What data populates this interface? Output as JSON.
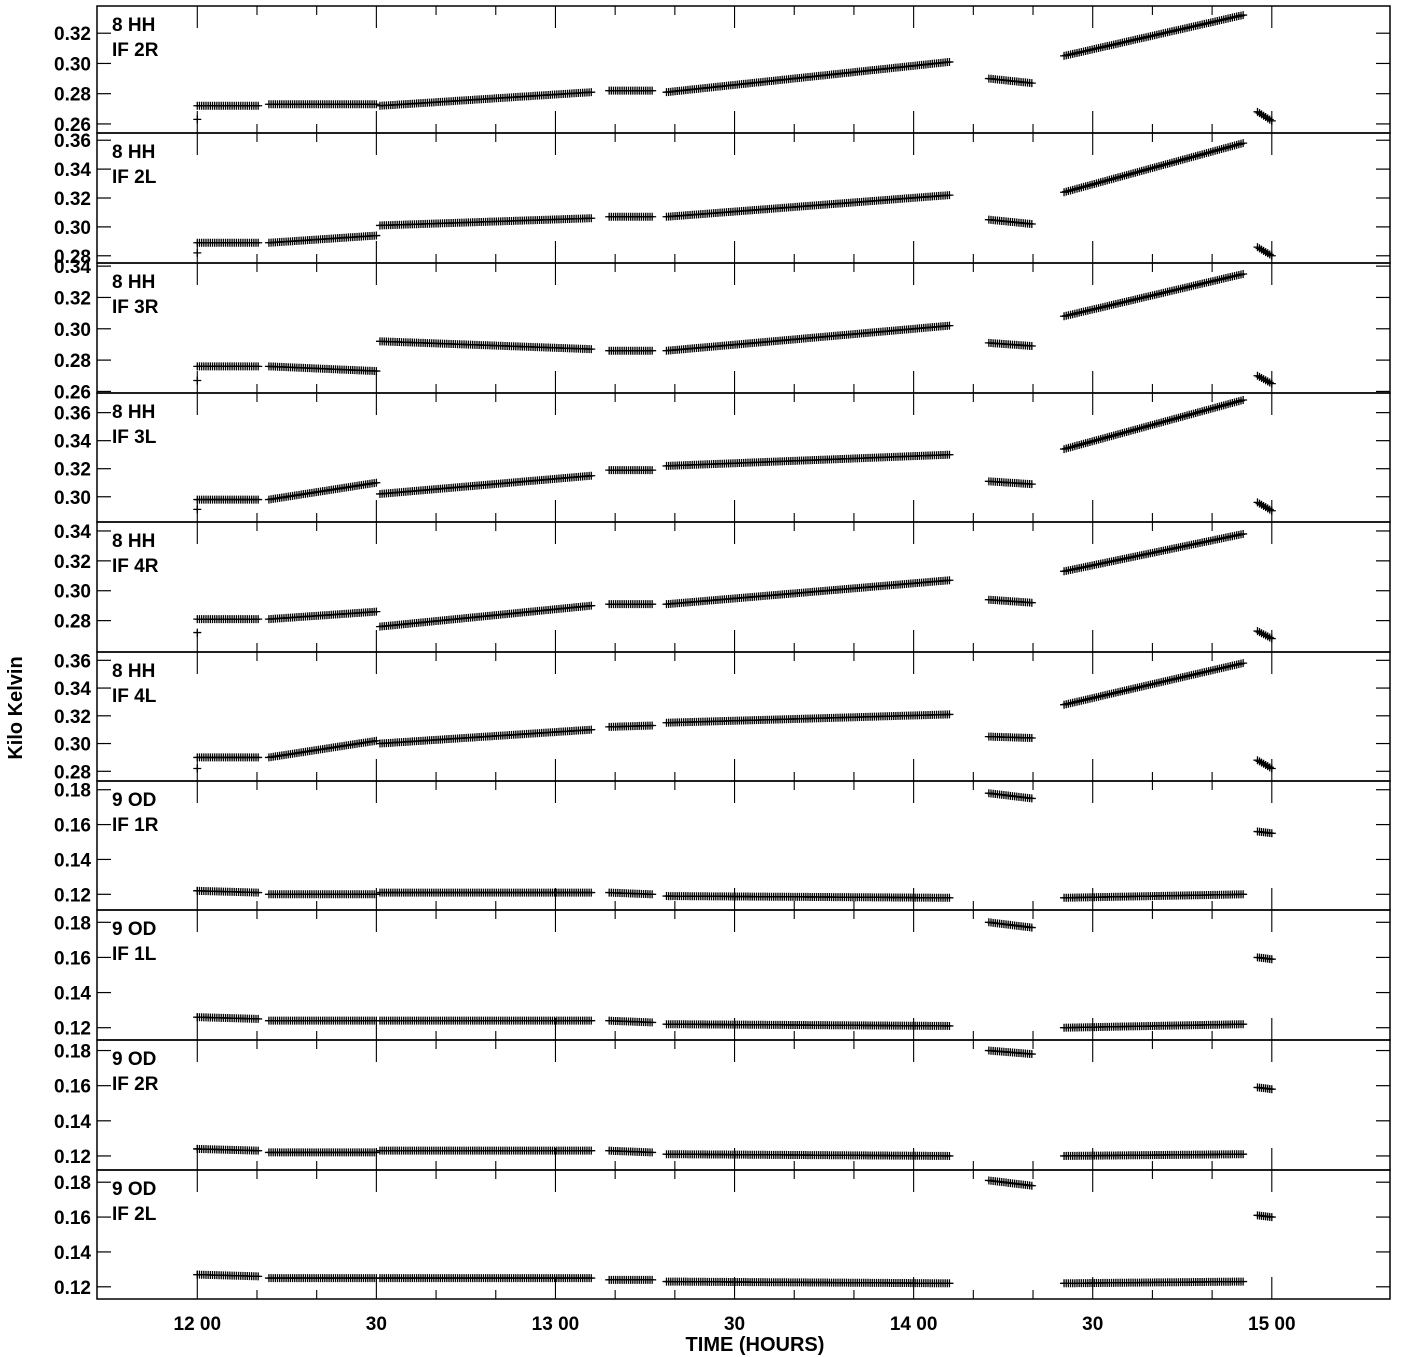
{
  "chart_data": {
    "type": "scatter",
    "marker": "+",
    "ylabel": "Kilo Kelvin",
    "xlabel": "TIME (HOURS)",
    "x_unit": "hours",
    "xlim": [
      11.72,
      15.33
    ],
    "x_ticks": [
      {
        "value": 12.0,
        "label": "12 00"
      },
      {
        "value": 12.5,
        "label": "30"
      },
      {
        "value": 13.0,
        "label": "13 00"
      },
      {
        "value": 13.5,
        "label": "30"
      },
      {
        "value": 14.0,
        "label": "14 00"
      },
      {
        "value": 14.5,
        "label": "30"
      },
      {
        "value": 15.0,
        "label": "15 00"
      }
    ],
    "time_segments": [
      [
        12.0,
        12.17
      ],
      [
        12.2,
        12.5
      ],
      [
        12.51,
        13.1
      ],
      [
        13.15,
        13.27
      ],
      [
        13.31,
        14.1
      ],
      [
        14.21,
        14.33
      ],
      [
        14.42,
        14.92
      ],
      [
        14.96,
        15.0
      ]
    ],
    "panels": [
      {
        "label_line1": "8 HH",
        "label_line2": "IF 2R",
        "ylim": [
          0.254,
          0.338
        ],
        "yticks": [
          0.26,
          0.28,
          0.3,
          0.32
        ],
        "first_point": 0.263,
        "segments": [
          [
            0.272,
            0.272
          ],
          [
            0.273,
            0.273
          ],
          [
            0.272,
            0.281
          ],
          [
            0.282,
            0.282
          ],
          [
            0.281,
            0.301
          ],
          [
            0.29,
            0.287
          ],
          [
            0.305,
            0.332
          ],
          [
            0.268,
            0.262
          ]
        ]
      },
      {
        "label_line1": "8 HH",
        "label_line2": "IF 2L",
        "ylim": [
          0.275,
          0.365
        ],
        "yticks": [
          0.28,
          0.3,
          0.32,
          0.34,
          0.36
        ],
        "first_point": 0.282,
        "segments": [
          [
            0.289,
            0.289
          ],
          [
            0.289,
            0.294
          ],
          [
            0.301,
            0.306
          ],
          [
            0.307,
            0.307
          ],
          [
            0.307,
            0.322
          ],
          [
            0.305,
            0.302
          ],
          [
            0.324,
            0.358
          ],
          [
            0.286,
            0.28
          ]
        ]
      },
      {
        "label_line1": "8 HH",
        "label_line2": "IF 3R",
        "ylim": [
          0.259,
          0.342
        ],
        "yticks": [
          0.26,
          0.28,
          0.3,
          0.32,
          0.34
        ],
        "first_point": 0.267,
        "segments": [
          [
            0.276,
            0.276
          ],
          [
            0.276,
            0.273
          ],
          [
            0.292,
            0.287
          ],
          [
            0.286,
            0.286
          ],
          [
            0.286,
            0.302
          ],
          [
            0.291,
            0.289
          ],
          [
            0.308,
            0.335
          ],
          [
            0.27,
            0.265
          ]
        ]
      },
      {
        "label_line1": "8 HH",
        "label_line2": "IF 3L",
        "ylim": [
          0.282,
          0.374
        ],
        "yticks": [
          0.3,
          0.32,
          0.34,
          0.36
        ],
        "first_point": 0.291,
        "segments": [
          [
            0.298,
            0.298
          ],
          [
            0.298,
            0.31
          ],
          [
            0.302,
            0.315
          ],
          [
            0.319,
            0.319
          ],
          [
            0.322,
            0.33
          ],
          [
            0.311,
            0.309
          ],
          [
            0.334,
            0.369
          ],
          [
            0.296,
            0.29
          ]
        ]
      },
      {
        "label_line1": "8 HH",
        "label_line2": "IF 4R",
        "ylim": [
          0.259,
          0.346
        ],
        "yticks": [
          0.28,
          0.3,
          0.32,
          0.34
        ],
        "first_point": 0.272,
        "segments": [
          [
            0.281,
            0.281
          ],
          [
            0.281,
            0.286
          ],
          [
            0.276,
            0.29
          ],
          [
            0.291,
            0.291
          ],
          [
            0.291,
            0.307
          ],
          [
            0.294,
            0.292
          ],
          [
            0.313,
            0.338
          ],
          [
            0.273,
            0.268
          ]
        ]
      },
      {
        "label_line1": "8 HH",
        "label_line2": "IF 4L",
        "ylim": [
          0.273,
          0.366
        ],
        "yticks": [
          0.28,
          0.3,
          0.32,
          0.34,
          0.36
        ],
        "first_point": 0.282,
        "segments": [
          [
            0.29,
            0.29
          ],
          [
            0.29,
            0.302
          ],
          [
            0.3,
            0.31
          ],
          [
            0.312,
            0.313
          ],
          [
            0.315,
            0.321
          ],
          [
            0.305,
            0.304
          ],
          [
            0.328,
            0.358
          ],
          [
            0.288,
            0.282
          ]
        ]
      },
      {
        "label_line1": "9 OD",
        "label_line2": "IF 1R",
        "ylim": [
          0.111,
          0.185
        ],
        "yticks": [
          0.12,
          0.14,
          0.16,
          0.18
        ],
        "first_point": 0.122,
        "segments": [
          [
            0.122,
            0.121
          ],
          [
            0.12,
            0.12
          ],
          [
            0.121,
            0.121
          ],
          [
            0.121,
            0.12
          ],
          [
            0.119,
            0.118
          ],
          [
            0.178,
            0.175
          ],
          [
            0.118,
            0.12
          ],
          [
            0.156,
            0.155
          ]
        ]
      },
      {
        "label_line1": "9 OD",
        "label_line2": "IF 1L",
        "ylim": [
          0.113,
          0.187
        ],
        "yticks": [
          0.12,
          0.14,
          0.16,
          0.18
        ],
        "first_point": 0.126,
        "segments": [
          [
            0.126,
            0.125
          ],
          [
            0.124,
            0.124
          ],
          [
            0.124,
            0.124
          ],
          [
            0.124,
            0.123
          ],
          [
            0.122,
            0.121
          ],
          [
            0.18,
            0.177
          ],
          [
            0.12,
            0.122
          ],
          [
            0.16,
            0.159
          ]
        ]
      },
      {
        "label_line1": "9 OD",
        "label_line2": "IF 2R",
        "ylim": [
          0.112,
          0.186
        ],
        "yticks": [
          0.12,
          0.14,
          0.16,
          0.18
        ],
        "first_point": 0.124,
        "segments": [
          [
            0.124,
            0.123
          ],
          [
            0.122,
            0.122
          ],
          [
            0.123,
            0.123
          ],
          [
            0.123,
            0.122
          ],
          [
            0.121,
            0.12
          ],
          [
            0.18,
            0.178
          ],
          [
            0.12,
            0.121
          ],
          [
            0.159,
            0.158
          ]
        ]
      },
      {
        "label_line1": "9 OD",
        "label_line2": "IF 2L",
        "ylim": [
          0.113,
          0.187
        ],
        "yticks": [
          0.12,
          0.14,
          0.16,
          0.18
        ],
        "first_point": 0.127,
        "segments": [
          [
            0.127,
            0.126
          ],
          [
            0.125,
            0.125
          ],
          [
            0.125,
            0.125
          ],
          [
            0.124,
            0.124
          ],
          [
            0.123,
            0.122
          ],
          [
            0.181,
            0.178
          ],
          [
            0.122,
            0.123
          ],
          [
            0.161,
            0.16
          ]
        ]
      }
    ]
  }
}
